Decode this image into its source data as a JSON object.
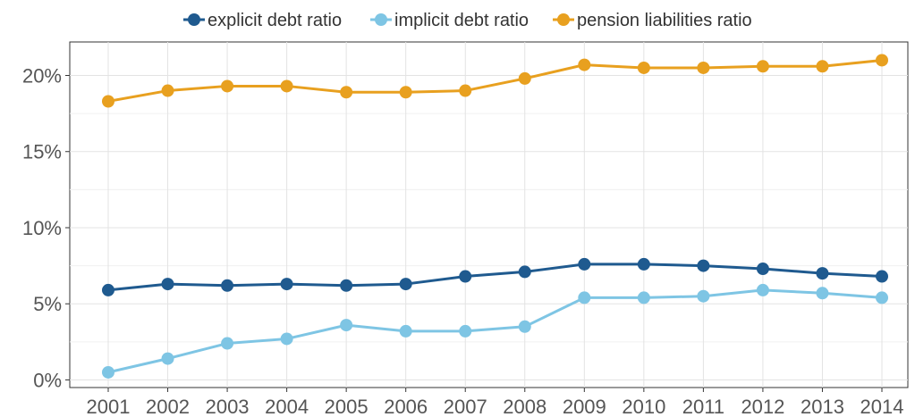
{
  "chart_data": {
    "type": "line",
    "x": [
      "2001",
      "2002",
      "2003",
      "2004",
      "2005",
      "2006",
      "2007",
      "2008",
      "2009",
      "2010",
      "2011",
      "2012",
      "2013",
      "2014"
    ],
    "series": [
      {
        "name": "explicit debt ratio",
        "color": "#1f5a8f",
        "values": [
          5.9,
          6.3,
          6.2,
          6.3,
          6.2,
          6.3,
          6.8,
          7.1,
          7.6,
          7.6,
          7.5,
          7.3,
          7.0,
          6.8
        ]
      },
      {
        "name": "implicit debt ratio",
        "color": "#7ec5e4",
        "values": [
          0.5,
          1.4,
          2.4,
          2.7,
          3.6,
          3.2,
          3.2,
          3.5,
          5.4,
          5.4,
          5.5,
          5.9,
          5.7,
          5.4
        ]
      },
      {
        "name": "pension liabilities ratio",
        "color": "#e8a01f",
        "values": [
          18.3,
          19.0,
          19.3,
          19.3,
          18.9,
          18.9,
          19.0,
          19.8,
          20.7,
          20.5,
          20.5,
          20.6,
          20.6,
          21.0
        ]
      }
    ],
    "y_ticks": [
      0,
      5,
      10,
      15,
      20
    ],
    "y_tick_labels": [
      "0%",
      "5%",
      "10%",
      "15%",
      "20%"
    ],
    "ylim": [
      -0.5,
      22.2
    ],
    "grid": true,
    "legend_position": "top"
  }
}
